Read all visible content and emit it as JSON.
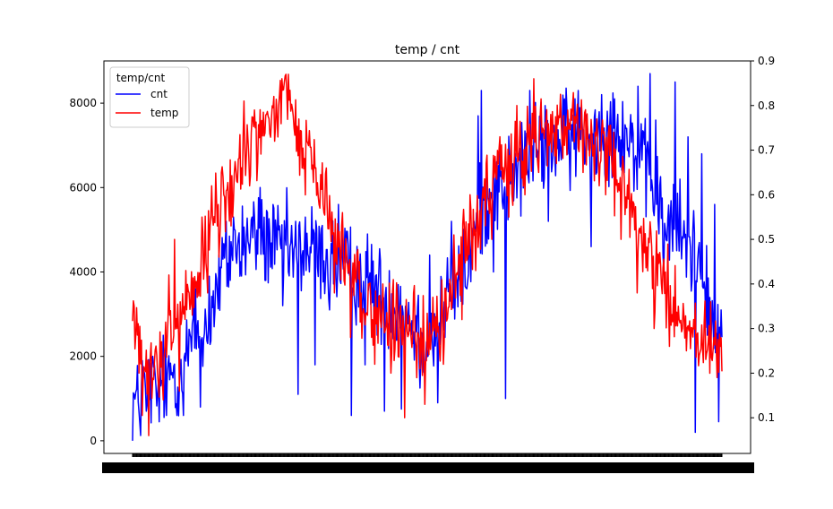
{
  "chart_data": {
    "type": "line",
    "title": "temp / cnt",
    "xlabel": "",
    "ylabel": "",
    "x_ticks_note": "",
    "y_left": {
      "ylim": [
        -300,
        9000
      ],
      "ticks": [
        0,
        2000,
        4000,
        6000,
        8000
      ]
    },
    "y_right": {
      "ylim": [
        0.02,
        0.9
      ],
      "ticks": [
        0.1,
        0.2,
        0.3,
        0.4,
        0.5,
        0.6,
        0.7,
        0.8,
        0.9
      ]
    },
    "x_count": 731,
    "legend": {
      "title": "temp/cnt",
      "placement": "top-left"
    },
    "grid": false,
    "series": [
      {
        "name": "cnt",
        "axis": "left",
        "color": "#0000ff",
        "anchors": [
          [
            0,
            985
          ],
          [
            8,
            800
          ],
          [
            15,
            1200
          ],
          [
            22,
            1350
          ],
          [
            30,
            1000
          ],
          [
            40,
            1500
          ],
          [
            50,
            1700
          ],
          [
            60,
            1900
          ],
          [
            70,
            2200
          ],
          [
            80,
            2500
          ],
          [
            90,
            2600
          ],
          [
            100,
            3200
          ],
          [
            110,
            3900
          ],
          [
            120,
            4300
          ],
          [
            130,
            4600
          ],
          [
            140,
            4700
          ],
          [
            150,
            4800
          ],
          [
            160,
            4900
          ],
          [
            170,
            4700
          ],
          [
            180,
            4500
          ],
          [
            190,
            4600
          ],
          [
            200,
            4400
          ],
          [
            210,
            4500
          ],
          [
            220,
            4600
          ],
          [
            230,
            4400
          ],
          [
            240,
            4300
          ],
          [
            250,
            4200
          ],
          [
            260,
            4100
          ],
          [
            270,
            4000
          ],
          [
            280,
            3900
          ],
          [
            290,
            3800
          ],
          [
            300,
            3700
          ],
          [
            310,
            3400
          ],
          [
            320,
            3300
          ],
          [
            330,
            3200
          ],
          [
            340,
            3000
          ],
          [
            350,
            2700
          ],
          [
            360,
            2500
          ],
          [
            366,
            2300
          ],
          [
            380,
            2800
          ],
          [
            390,
            3400
          ],
          [
            400,
            3600
          ],
          [
            410,
            4000
          ],
          [
            420,
            4600
          ],
          [
            430,
            5300
          ],
          [
            440,
            5800
          ],
          [
            450,
            6000
          ],
          [
            460,
            6100
          ],
          [
            470,
            6200
          ],
          [
            480,
            6400
          ],
          [
            490,
            6800
          ],
          [
            500,
            6900
          ],
          [
            510,
            7000
          ],
          [
            520,
            7100
          ],
          [
            530,
            7000
          ],
          [
            540,
            7100
          ],
          [
            550,
            7200
          ],
          [
            560,
            7300
          ],
          [
            570,
            7200
          ],
          [
            580,
            7400
          ],
          [
            590,
            7300
          ],
          [
            600,
            7500
          ],
          [
            610,
            7200
          ],
          [
            620,
            7000
          ],
          [
            630,
            6500
          ],
          [
            640,
            6200
          ],
          [
            650,
            5600
          ],
          [
            660,
            5200
          ],
          [
            670,
            5000
          ],
          [
            680,
            4800
          ],
          [
            690,
            4500
          ],
          [
            700,
            4400
          ],
          [
            710,
            3800
          ],
          [
            720,
            2500
          ],
          [
            730,
            2100
          ]
        ],
        "spikes": [
          [
            12,
            1900
          ],
          [
            17,
            700
          ],
          [
            25,
            2000
          ],
          [
            33,
            450
          ],
          [
            42,
            600
          ],
          [
            55,
            600
          ],
          [
            63,
            600
          ],
          [
            78,
            3600
          ],
          [
            84,
            800
          ],
          [
            95,
            3900
          ],
          [
            105,
            3500
          ],
          [
            116,
            5200
          ],
          [
            125,
            5300
          ],
          [
            133,
            3900
          ],
          [
            148,
            5300
          ],
          [
            158,
            6000
          ],
          [
            164,
            3800
          ],
          [
            178,
            5000
          ],
          [
            186,
            3200
          ],
          [
            197,
            5100
          ],
          [
            205,
            1100
          ],
          [
            214,
            5300
          ],
          [
            219,
            4000
          ],
          [
            226,
            1800
          ],
          [
            244,
            3100
          ],
          [
            255,
            5600
          ],
          [
            271,
            600
          ],
          [
            281,
            4100
          ],
          [
            288,
            1800
          ],
          [
            303,
            2500
          ],
          [
            312,
            700
          ],
          [
            329,
            3700
          ],
          [
            333,
            750
          ],
          [
            343,
            2600
          ],
          [
            356,
            1250
          ],
          [
            368,
            4400
          ],
          [
            378,
            900
          ],
          [
            395,
            5200
          ],
          [
            414,
            3600
          ],
          [
            428,
            7700
          ],
          [
            432,
            8300
          ],
          [
            447,
            4000
          ],
          [
            462,
            1000
          ],
          [
            478,
            6800
          ],
          [
            492,
            8300
          ],
          [
            508,
            7300
          ],
          [
            515,
            5200
          ],
          [
            535,
            8100
          ],
          [
            552,
            8300
          ],
          [
            568,
            4600
          ],
          [
            581,
            8200
          ],
          [
            597,
            8100
          ],
          [
            611,
            7400
          ],
          [
            626,
            8400
          ],
          [
            641,
            8700
          ],
          [
            648,
            7600
          ],
          [
            658,
            4000
          ],
          [
            672,
            8500
          ],
          [
            678,
            6200
          ],
          [
            688,
            7200
          ],
          [
            697,
            200
          ],
          [
            705,
            6800
          ],
          [
            712,
            2500
          ],
          [
            721,
            5600
          ],
          [
            726,
            450
          ],
          [
            729,
            3100
          ]
        ]
      },
      {
        "name": "temp",
        "axis": "right",
        "color": "#ff0000",
        "anchors": [
          [
            0,
            0.344
          ],
          [
            6,
            0.3
          ],
          [
            10,
            0.21
          ],
          [
            18,
            0.18
          ],
          [
            25,
            0.2
          ],
          [
            33,
            0.21
          ],
          [
            40,
            0.24
          ],
          [
            50,
            0.3
          ],
          [
            60,
            0.34
          ],
          [
            70,
            0.35
          ],
          [
            80,
            0.4
          ],
          [
            90,
            0.45
          ],
          [
            100,
            0.55
          ],
          [
            110,
            0.58
          ],
          [
            120,
            0.6
          ],
          [
            130,
            0.66
          ],
          [
            140,
            0.7
          ],
          [
            150,
            0.72
          ],
          [
            160,
            0.74
          ],
          [
            170,
            0.77
          ],
          [
            180,
            0.79
          ],
          [
            188,
            0.84
          ],
          [
            195,
            0.8
          ],
          [
            205,
            0.73
          ],
          [
            215,
            0.7
          ],
          [
            225,
            0.64
          ],
          [
            235,
            0.6
          ],
          [
            245,
            0.55
          ],
          [
            255,
            0.48
          ],
          [
            265,
            0.44
          ],
          [
            275,
            0.41
          ],
          [
            285,
            0.36
          ],
          [
            295,
            0.34
          ],
          [
            305,
            0.33
          ],
          [
            315,
            0.31
          ],
          [
            325,
            0.3
          ],
          [
            335,
            0.28
          ],
          [
            345,
            0.3
          ],
          [
            355,
            0.28
          ],
          [
            366,
            0.27
          ],
          [
            380,
            0.3
          ],
          [
            390,
            0.36
          ],
          [
            400,
            0.42
          ],
          [
            410,
            0.48
          ],
          [
            420,
            0.53
          ],
          [
            430,
            0.56
          ],
          [
            440,
            0.6
          ],
          [
            450,
            0.62
          ],
          [
            460,
            0.65
          ],
          [
            470,
            0.68
          ],
          [
            480,
            0.7
          ],
          [
            490,
            0.71
          ],
          [
            500,
            0.73
          ],
          [
            510,
            0.74
          ],
          [
            520,
            0.75
          ],
          [
            530,
            0.78
          ],
          [
            540,
            0.77
          ],
          [
            550,
            0.75
          ],
          [
            560,
            0.73
          ],
          [
            570,
            0.72
          ],
          [
            580,
            0.7
          ],
          [
            590,
            0.67
          ],
          [
            600,
            0.63
          ],
          [
            610,
            0.6
          ],
          [
            620,
            0.56
          ],
          [
            630,
            0.52
          ],
          [
            640,
            0.48
          ],
          [
            650,
            0.44
          ],
          [
            660,
            0.4
          ],
          [
            670,
            0.36
          ],
          [
            680,
            0.33
          ],
          [
            690,
            0.3
          ],
          [
            700,
            0.29
          ],
          [
            710,
            0.28
          ],
          [
            720,
            0.26
          ],
          [
            730,
            0.22
          ]
        ],
        "spikes": [
          [
            2,
            0.35
          ],
          [
            8,
            0.2
          ],
          [
            20,
            0.06
          ],
          [
            30,
            0.24
          ],
          [
            38,
            0.14
          ],
          [
            45,
            0.42
          ],
          [
            52,
            0.5
          ],
          [
            58,
            0.16
          ],
          [
            66,
            0.43
          ],
          [
            74,
            0.33
          ],
          [
            86,
            0.55
          ],
          [
            93,
            0.38
          ],
          [
            98,
            0.62
          ],
          [
            107,
            0.46
          ],
          [
            113,
            0.6
          ],
          [
            122,
            0.53
          ],
          [
            138,
            0.81
          ],
          [
            145,
            0.62
          ],
          [
            152,
            0.75
          ],
          [
            166,
            0.78
          ],
          [
            176,
            0.72
          ],
          [
            185,
            0.86
          ],
          [
            200,
            0.75
          ],
          [
            210,
            0.66
          ],
          [
            218,
            0.71
          ],
          [
            232,
            0.57
          ],
          [
            240,
            0.66
          ],
          [
            250,
            0.38
          ],
          [
            260,
            0.56
          ],
          [
            270,
            0.28
          ],
          [
            278,
            0.47
          ],
          [
            292,
            0.4
          ],
          [
            300,
            0.22
          ],
          [
            310,
            0.4
          ],
          [
            320,
            0.2
          ],
          [
            328,
            0.37
          ],
          [
            337,
            0.1
          ],
          [
            348,
            0.38
          ],
          [
            362,
            0.13
          ],
          [
            372,
            0.37
          ],
          [
            385,
            0.22
          ],
          [
            398,
            0.51
          ],
          [
            408,
            0.32
          ],
          [
            418,
            0.6
          ],
          [
            425,
            0.43
          ],
          [
            438,
            0.67
          ],
          [
            445,
            0.5
          ],
          [
            455,
            0.73
          ],
          [
            466,
            0.55
          ],
          [
            476,
            0.8
          ],
          [
            486,
            0.6
          ],
          [
            497,
            0.86
          ],
          [
            503,
            0.65
          ],
          [
            518,
            0.78
          ],
          [
            525,
            0.67
          ],
          [
            545,
            0.8
          ],
          [
            558,
            0.65
          ],
          [
            575,
            0.77
          ],
          [
            586,
            0.6
          ],
          [
            596,
            0.74
          ],
          [
            605,
            0.5
          ],
          [
            617,
            0.58
          ],
          [
            625,
            0.38
          ],
          [
            634,
            0.47
          ],
          [
            646,
            0.3
          ],
          [
            655,
            0.4
          ],
          [
            665,
            0.26
          ],
          [
            676,
            0.35
          ],
          [
            686,
            0.25
          ],
          [
            695,
            0.32
          ],
          [
            702,
            0.24
          ],
          [
            716,
            0.36
          ],
          [
            724,
            0.19
          ],
          [
            728,
            0.26
          ]
        ]
      }
    ]
  }
}
